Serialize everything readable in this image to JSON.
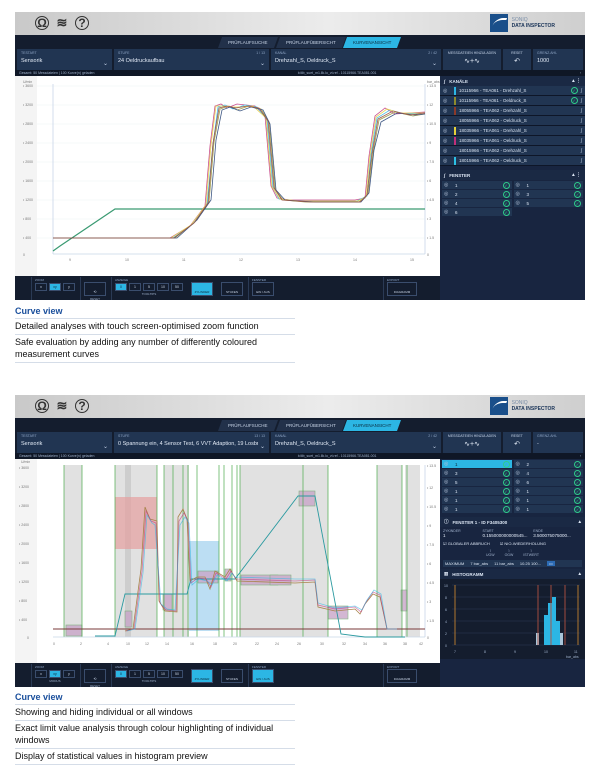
{
  "app": {
    "logo_small": "SONIQ",
    "logo_name": "DATA INSPECTOR",
    "top_icons": [
      "brain-icon",
      "layers-icon",
      "help-icon"
    ],
    "tabs": [
      "PRÜFLAUFSUCHE",
      "PRÜFLAUFÜBERSICHT",
      "KURVENANSICHT"
    ],
    "active_tab": "KURVENANSICHT"
  },
  "screen1": {
    "filters": {
      "testart_label": "TESTART",
      "testart_value": "Sensorik",
      "stufe_label": "STUFE",
      "stufe_value": "24 Oeldruckaufbau",
      "stufe_count": "1 / 13",
      "kanal_label": "KANAL",
      "kanal_value": "Drehzahl_S, Oeldruck_S",
      "kanal_count": "2 / 42",
      "reload_label": "MESSDATEIEN HINZULADEN",
      "reset_label": "RESET",
      "grenz_label": "GRENZ.AHL",
      "grenz_value": "1000"
    },
    "info_left": "Gesamt: 50 Messdateien | 100 Kurve(n) geladen",
    "info_file": "b4tb_suet_m1.llk.lo_vt.ref - 10115966.TEA081.001",
    "chart": {
      "left_unit": "U/min",
      "right_unit": "bar_abs",
      "left_ticks": [
        "3000",
        "3200",
        "2800",
        "2400",
        "2000",
        "1600",
        "1200",
        "800",
        "400",
        "0"
      ],
      "right_ticks": [
        "13.5",
        "12",
        "10.5",
        "9",
        "7.5",
        "6",
        "4.5",
        "3",
        "1.5",
        "0"
      ],
      "x_ticks": [
        "9",
        "10",
        "11",
        "12",
        "13",
        "14",
        "15"
      ],
      "x_unit": "s"
    },
    "channels_title": "KANÄLE",
    "channels": [
      {
        "label": "10115966 - TEA061 - Drehzahl_S",
        "color": "#2cb6e4",
        "ok": true
      },
      {
        "label": "10115966 - TEA061 - Oeldruck_S",
        "color": "#8c8a2e",
        "ok": true
      },
      {
        "label": "18055966 - TEA062 - Drehzahl_S",
        "color": "#8b3a2a",
        "ok": false
      },
      {
        "label": "18055966 - TEA062 - Oeldruck_S",
        "color": "#213552",
        "ok": false
      },
      {
        "label": "18035966 - TEA061 - Drehzahl_S",
        "color": "#e4d03a",
        "ok": false
      },
      {
        "label": "18035966 - TEA061 - Oeldruck_S",
        "color": "#c0307a",
        "ok": false
      },
      {
        "label": "18015966 - TEA062 - Drehzahl_S",
        "color": "#213552",
        "ok": false
      },
      {
        "label": "18015966 - TEA062 - Oeldruck_S",
        "color": "#2cc0e4",
        "ok": false
      }
    ],
    "windows_title": "FENSTER",
    "windows": [
      "1",
      "1",
      "2",
      "3",
      "4",
      "5",
      "6"
    ],
    "toolbar": {
      "zoom": "ZOOM",
      "zoom_btns": [
        "x",
        "xy",
        "y"
      ],
      "modus": "MODUS",
      "reset": "RESET",
      "anzeige": "ANZEIGE",
      "tooltip_btns": [
        "0",
        "1",
        "5",
        "10",
        "50"
      ],
      "tooltips": "TOOLTIPS",
      "zylinder": "ZYLINDER",
      "stufen": "STUFEN",
      "fenster": "FENSTER",
      "ein_aus": "EIN / AUS",
      "export": "EXPORT",
      "diagramm": "DIAGRAMM"
    }
  },
  "caption1": {
    "heading": "Curve view",
    "lines": [
      "Detailed analyses with touch screen-optimised zoom function",
      "Safe evaluation by adding any number of differently coloured measurement curves"
    ]
  },
  "screen2": {
    "filters": {
      "testart_label": "TESTART",
      "testart_value": "Sensorik",
      "stufe_label": "STUFE",
      "stufe_value": "0 Spannung ein, 4 Sensor Test, 6 VVT Adaption, 19 Losbrechen...",
      "stufe_count": "13 / 13",
      "kanal_label": "KANAL",
      "kanal_value": "Drehzahl_S, Oeldruck_S",
      "kanal_count": "2 / 42",
      "reload_label": "MESSDATEIEN HINZULADEN",
      "reset_label": "RESET",
      "grenz_label": "GRENZ.AHL",
      "grenz_value": "-"
    },
    "info_left": "Gesamt: 50 Messdateien | 100 Kurve(n) geladen",
    "info_file": "b4tb_suet_m1.llk.lo_vt.ref - 10115966.TEA081.001",
    "chart": {
      "left_unit": "U/min",
      "right_unit": "bar_abs",
      "left_ticks": [
        "3600",
        "3200",
        "2800",
        "2400",
        "2000",
        "1600",
        "1200",
        "800",
        "400",
        "0"
      ],
      "right_ticks": [
        "13.5",
        "12",
        "10.5",
        "9",
        "7.5",
        "6",
        "4.5",
        "3",
        "1.5",
        "0"
      ],
      "x_ticks": [
        "0",
        "2",
        "4",
        "6",
        "8",
        "10",
        "12",
        "14",
        "16",
        "18",
        "20",
        "22",
        "24",
        "26",
        "28",
        "30",
        "32",
        "34",
        "36",
        "38",
        "42"
      ],
      "x_unit": "s"
    },
    "windows": [
      {
        "a": "1",
        "b": "2",
        "sel": true
      },
      {
        "a": "3",
        "b": "4"
      },
      {
        "a": "5",
        "b": "6"
      },
      {
        "a": "1",
        "b": "1"
      },
      {
        "a": "1",
        "b": "1"
      },
      {
        "a": "1",
        "b": "1"
      }
    ],
    "window_detail": {
      "title": "FENSTER 1 - ID F3405300",
      "zyklinder_label": "ZYKINDER",
      "zyklinder": "1",
      "start_label": "START",
      "start": "0.155000000000545...",
      "ende_label": "ENDE",
      "ende": "3.500075075000...",
      "global_abbruch": "GLOBALER ABBRUCH",
      "nio_wiederholung": "NIO-WIEDERHOLUNG",
      "cols": [
        "UGW",
        "OGW",
        "ISTWERT"
      ],
      "max_label": "MAXIMUM",
      "ugw": "7 bar_abs",
      "ogw": "11 bar_abs",
      "ist": "10.25 100..."
    },
    "histogram": {
      "title": "HISTOGRAMM",
      "y_ticks": [
        "10",
        "8",
        "6",
        "4",
        "2",
        "0"
      ],
      "x_ticks": [
        "7",
        "8",
        "9",
        "10",
        "11"
      ],
      "x_unit": "bar_abs",
      "markers": [
        "Unterer Grenzwert",
        "Mittelwert - 3s",
        "Mittelwert",
        "Mittelwert + 3s",
        "Oberer Grenzwert"
      ]
    }
  },
  "caption2": {
    "heading": "Curve view",
    "lines": [
      "Showing and hiding individual or all windows",
      "Exact limit value analysis through colour highlighting of individual windows",
      "Display of statistical values in histogram preview"
    ]
  },
  "chart_data": [
    {
      "type": "line",
      "title": "Curve view - 24 Oeldruckaufbau",
      "xlabel": "s",
      "ylabel": "U/min",
      "y2label": "bar_abs",
      "x_range": [
        8.7,
        15.8
      ],
      "ylim": [
        0,
        3600
      ],
      "y2lim": [
        0,
        13.5
      ],
      "series": [
        {
          "name": "Drehzahl_S",
          "x": [
            8.7,
            9.8,
            15.8
          ],
          "values": [
            0,
            1000,
            1000
          ]
        },
        {
          "name": "Oeldruck_S (bar_abs)",
          "x": [
            8.7,
            10.8,
            11.4,
            11.7,
            12.0,
            12.8,
            13.0,
            14.8,
            15.0,
            15.8
          ],
          "values": [
            0.9,
            0.9,
            1.8,
            3.5,
            10.5,
            9,
            2.3,
            2.3,
            9,
            9
          ]
        }
      ],
      "grid": true
    },
    {
      "type": "bar",
      "title": "HISTOGRAMM",
      "xlabel": "bar_abs",
      "ylabel": "",
      "categories": [
        "9.6",
        "9.8",
        "10.0",
        "10.2",
        "10.4",
        "10.6"
      ],
      "values": [
        2,
        5,
        7,
        8,
        4,
        2
      ],
      "ylim": [
        0,
        10
      ]
    }
  ]
}
